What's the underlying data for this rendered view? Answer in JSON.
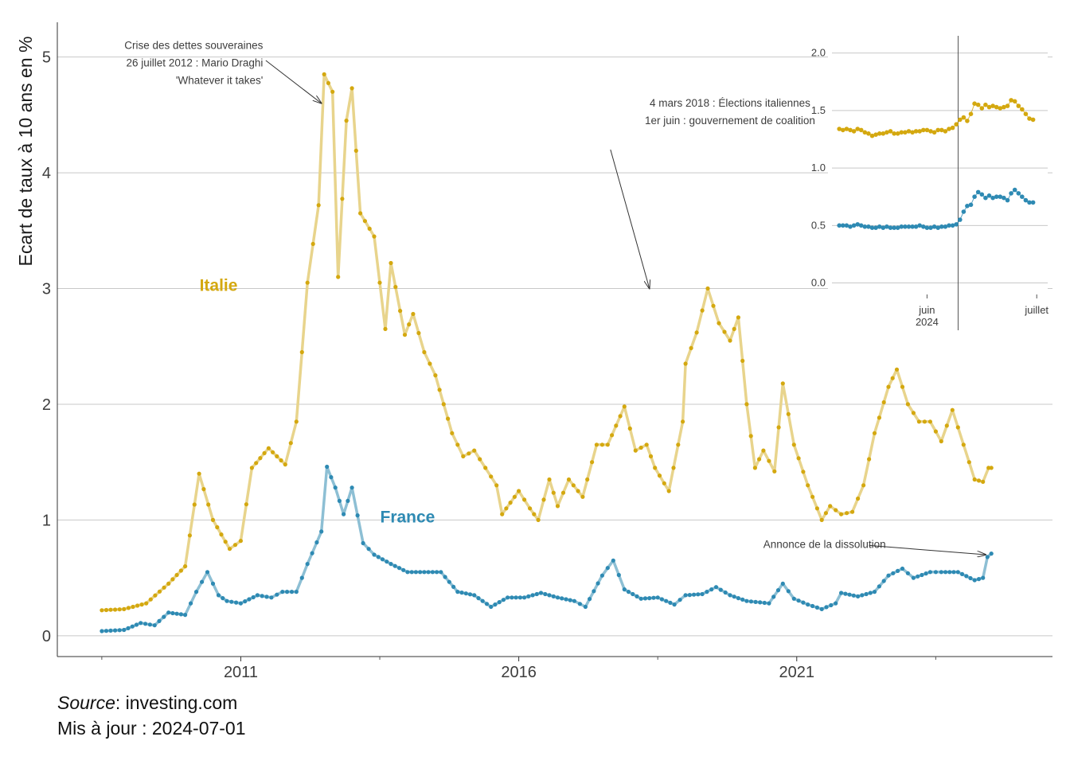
{
  "chart_data": {
    "type": "line",
    "ylabel": "Ecart de taux à 10 ans en %",
    "xlabel": "",
    "ylim": [
      -0.18,
      5.3
    ],
    "xlim": [
      2007.7,
      2025.6
    ],
    "y_ticks": [
      0,
      1,
      2,
      3,
      4,
      5
    ],
    "x_ticks": [
      2011,
      2016,
      2021
    ],
    "x_tick_labels": [
      "2011",
      "2016",
      "2021"
    ],
    "grid": "horizontal",
    "series": [
      {
        "name": "Italie",
        "color": "#D4A80F",
        "line_color": "#E8D48C",
        "anchors": [
          [
            2008.5,
            0.22
          ],
          [
            2008.9,
            0.23
          ],
          [
            2009.3,
            0.28
          ],
          [
            2009.7,
            0.45
          ],
          [
            2010.0,
            0.6
          ],
          [
            2010.25,
            1.4
          ],
          [
            2010.5,
            1.0
          ],
          [
            2010.8,
            0.75
          ],
          [
            2011.0,
            0.82
          ],
          [
            2011.2,
            1.45
          ],
          [
            2011.5,
            1.62
          ],
          [
            2011.8,
            1.48
          ],
          [
            2012.0,
            1.85
          ],
          [
            2012.2,
            3.05
          ],
          [
            2012.4,
            3.72
          ],
          [
            2012.5,
            4.85
          ],
          [
            2012.65,
            4.7
          ],
          [
            2012.75,
            3.1
          ],
          [
            2012.9,
            4.45
          ],
          [
            2013.0,
            4.73
          ],
          [
            2013.15,
            3.65
          ],
          [
            2013.4,
            3.45
          ],
          [
            2013.6,
            2.65
          ],
          [
            2013.7,
            3.22
          ],
          [
            2013.95,
            2.6
          ],
          [
            2014.1,
            2.78
          ],
          [
            2014.3,
            2.45
          ],
          [
            2014.5,
            2.25
          ],
          [
            2014.8,
            1.75
          ],
          [
            2015.0,
            1.55
          ],
          [
            2015.2,
            1.6
          ],
          [
            2015.4,
            1.45
          ],
          [
            2015.6,
            1.3
          ],
          [
            2015.7,
            1.05
          ],
          [
            2016.0,
            1.25
          ],
          [
            2016.2,
            1.1
          ],
          [
            2016.35,
            1.0
          ],
          [
            2016.55,
            1.35
          ],
          [
            2016.7,
            1.12
          ],
          [
            2016.9,
            1.35
          ],
          [
            2017.15,
            1.2
          ],
          [
            2017.4,
            1.65
          ],
          [
            2017.6,
            1.65
          ],
          [
            2017.9,
            1.98
          ],
          [
            2018.1,
            1.6
          ],
          [
            2018.3,
            1.65
          ],
          [
            2018.45,
            1.45
          ],
          [
            2018.7,
            1.25
          ],
          [
            2018.95,
            1.85
          ],
          [
            2019.0,
            2.35
          ],
          [
            2019.2,
            2.62
          ],
          [
            2019.4,
            3.0
          ],
          [
            2019.6,
            2.7
          ],
          [
            2019.8,
            2.55
          ],
          [
            2019.95,
            2.75
          ],
          [
            2020.1,
            2.0
          ],
          [
            2020.25,
            1.45
          ],
          [
            2020.4,
            1.6
          ],
          [
            2020.6,
            1.42
          ],
          [
            2020.75,
            2.18
          ],
          [
            2020.95,
            1.65
          ],
          [
            2021.2,
            1.3
          ],
          [
            2021.45,
            1.0
          ],
          [
            2021.6,
            1.12
          ],
          [
            2021.8,
            1.05
          ],
          [
            2022.0,
            1.07
          ],
          [
            2022.2,
            1.3
          ],
          [
            2022.4,
            1.75
          ],
          [
            2022.65,
            2.15
          ],
          [
            2022.8,
            2.3
          ],
          [
            2023.0,
            2.0
          ],
          [
            2023.2,
            1.85
          ],
          [
            2023.4,
            1.85
          ],
          [
            2023.6,
            1.68
          ],
          [
            2023.8,
            1.95
          ],
          [
            2024.0,
            1.65
          ],
          [
            2024.2,
            1.35
          ],
          [
            2024.35,
            1.33
          ],
          [
            2024.45,
            1.45
          ],
          [
            2024.5,
            1.45
          ]
        ]
      },
      {
        "name": "France",
        "color": "#2E8AB3",
        "line_color": "#8DBFD4",
        "anchors": [
          [
            2008.5,
            0.04
          ],
          [
            2008.9,
            0.05
          ],
          [
            2009.2,
            0.11
          ],
          [
            2009.45,
            0.09
          ],
          [
            2009.7,
            0.2
          ],
          [
            2010.0,
            0.18
          ],
          [
            2010.2,
            0.38
          ],
          [
            2010.4,
            0.55
          ],
          [
            2010.6,
            0.35
          ],
          [
            2010.75,
            0.3
          ],
          [
            2011.0,
            0.28
          ],
          [
            2011.3,
            0.35
          ],
          [
            2011.55,
            0.33
          ],
          [
            2011.75,
            0.38
          ],
          [
            2012.0,
            0.38
          ],
          [
            2012.2,
            0.62
          ],
          [
            2012.45,
            0.9
          ],
          [
            2012.55,
            1.46
          ],
          [
            2012.7,
            1.28
          ],
          [
            2012.85,
            1.05
          ],
          [
            2013.0,
            1.28
          ],
          [
            2013.2,
            0.8
          ],
          [
            2013.4,
            0.7
          ],
          [
            2013.7,
            0.62
          ],
          [
            2014.0,
            0.55
          ],
          [
            2014.3,
            0.55
          ],
          [
            2014.6,
            0.55
          ],
          [
            2014.9,
            0.38
          ],
          [
            2015.2,
            0.35
          ],
          [
            2015.5,
            0.25
          ],
          [
            2015.8,
            0.33
          ],
          [
            2016.1,
            0.33
          ],
          [
            2016.4,
            0.37
          ],
          [
            2016.7,
            0.33
          ],
          [
            2017.0,
            0.3
          ],
          [
            2017.2,
            0.25
          ],
          [
            2017.5,
            0.52
          ],
          [
            2017.7,
            0.65
          ],
          [
            2017.9,
            0.4
          ],
          [
            2018.2,
            0.32
          ],
          [
            2018.5,
            0.33
          ],
          [
            2018.8,
            0.27
          ],
          [
            2019.0,
            0.35
          ],
          [
            2019.3,
            0.36
          ],
          [
            2019.55,
            0.42
          ],
          [
            2019.8,
            0.35
          ],
          [
            2020.1,
            0.3
          ],
          [
            2020.5,
            0.28
          ],
          [
            2020.75,
            0.45
          ],
          [
            2020.95,
            0.32
          ],
          [
            2021.2,
            0.27
          ],
          [
            2021.45,
            0.23
          ],
          [
            2021.7,
            0.28
          ],
          [
            2021.8,
            0.37
          ],
          [
            2022.1,
            0.34
          ],
          [
            2022.4,
            0.38
          ],
          [
            2022.65,
            0.52
          ],
          [
            2022.9,
            0.58
          ],
          [
            2023.1,
            0.5
          ],
          [
            2023.4,
            0.55
          ],
          [
            2023.6,
            0.55
          ],
          [
            2023.9,
            0.55
          ],
          [
            2024.2,
            0.48
          ],
          [
            2024.35,
            0.5
          ],
          [
            2024.43,
            0.68
          ],
          [
            2024.5,
            0.71
          ]
        ]
      }
    ],
    "series_labels": [
      {
        "text": "Italie",
        "x": 2010.6,
        "y": 2.98
      },
      {
        "text": "France",
        "x": 2014.0,
        "y": 0.98
      }
    ],
    "annotations": [
      {
        "lines": [
          "Crise des dettes souveraines",
          "26 juillet 2012 : Mario Draghi",
          "'Whatever it takes'"
        ],
        "align": "end",
        "text_x": 2011.4,
        "text_y": 5.07,
        "arrow_from": [
          2011.45,
          4.97
        ],
        "arrow_to": [
          2012.45,
          4.6
        ]
      },
      {
        "lines": [
          "4 mars 2018 : Élections italiennes",
          "1er juin : gouvernement de coalition"
        ],
        "align": "middle",
        "text_x": 2019.8,
        "text_y": 4.57,
        "arrow_from": [
          2017.65,
          4.2
        ],
        "arrow_to": [
          2018.35,
          3.0
        ]
      },
      {
        "lines": [
          "Annonce de la dissolution"
        ],
        "align": "middle",
        "text_x": 2021.5,
        "text_y": 0.76,
        "arrow_from": [
          2022.3,
          0.78
        ],
        "arrow_to": [
          2024.4,
          0.7
        ]
      }
    ],
    "inset": {
      "type": "line",
      "ylim": [
        -0.1,
        2.15
      ],
      "y_ticks": [
        0.0,
        0.5,
        1.0,
        1.5,
        2.0
      ],
      "y_tick_labels": [
        "0.0",
        "0.5",
        "1.0",
        "1.5",
        "2.0"
      ],
      "x_ticks": [
        6,
        36
      ],
      "x_tick_labels": [
        [
          "juin",
          "2024"
        ],
        [
          "juillet"
        ]
      ],
      "xlim": [
        -20,
        39
      ],
      "vline_x": 14.5,
      "series": [
        {
          "name": "Italie",
          "color": "#D4A80F",
          "points": [
            [
              -18,
              1.34
            ],
            [
              -17,
              1.33
            ],
            [
              -16,
              1.34
            ],
            [
              -15,
              1.33
            ],
            [
              -14,
              1.32
            ],
            [
              -13,
              1.34
            ],
            [
              -12,
              1.33
            ],
            [
              -11,
              1.31
            ],
            [
              -10,
              1.3
            ],
            [
              -9,
              1.28
            ],
            [
              -8,
              1.29
            ],
            [
              -7,
              1.3
            ],
            [
              -6,
              1.3
            ],
            [
              -5,
              1.31
            ],
            [
              -4,
              1.32
            ],
            [
              -3,
              1.3
            ],
            [
              -2,
              1.3
            ],
            [
              -1,
              1.31
            ],
            [
              0,
              1.31
            ],
            [
              1,
              1.32
            ],
            [
              2,
              1.31
            ],
            [
              3,
              1.32
            ],
            [
              4,
              1.32
            ],
            [
              5,
              1.33
            ],
            [
              6,
              1.33
            ],
            [
              7,
              1.32
            ],
            [
              8,
              1.31
            ],
            [
              9,
              1.33
            ],
            [
              10,
              1.33
            ],
            [
              11,
              1.32
            ],
            [
              12,
              1.34
            ],
            [
              13,
              1.35
            ],
            [
              14,
              1.38
            ],
            [
              15,
              1.42
            ],
            [
              16,
              1.44
            ],
            [
              17,
              1.41
            ],
            [
              18,
              1.47
            ],
            [
              19,
              1.56
            ],
            [
              20,
              1.55
            ],
            [
              21,
              1.52
            ],
            [
              22,
              1.55
            ],
            [
              23,
              1.53
            ],
            [
              24,
              1.54
            ],
            [
              25,
              1.53
            ],
            [
              26,
              1.52
            ],
            [
              27,
              1.53
            ],
            [
              28,
              1.54
            ],
            [
              29,
              1.59
            ],
            [
              30,
              1.58
            ],
            [
              31,
              1.54
            ],
            [
              32,
              1.51
            ],
            [
              33,
              1.47
            ],
            [
              34,
              1.43
            ],
            [
              35,
              1.42
            ]
          ]
        },
        {
          "name": "France",
          "color": "#2E8AB3",
          "points": [
            [
              -18,
              0.5
            ],
            [
              -17,
              0.5
            ],
            [
              -16,
              0.5
            ],
            [
              -15,
              0.49
            ],
            [
              -14,
              0.5
            ],
            [
              -13,
              0.51
            ],
            [
              -12,
              0.5
            ],
            [
              -11,
              0.49
            ],
            [
              -10,
              0.49
            ],
            [
              -9,
              0.48
            ],
            [
              -8,
              0.48
            ],
            [
              -7,
              0.49
            ],
            [
              -6,
              0.48
            ],
            [
              -5,
              0.49
            ],
            [
              -4,
              0.48
            ],
            [
              -3,
              0.48
            ],
            [
              -2,
              0.48
            ],
            [
              -1,
              0.49
            ],
            [
              0,
              0.49
            ],
            [
              1,
              0.49
            ],
            [
              2,
              0.49
            ],
            [
              3,
              0.49
            ],
            [
              4,
              0.5
            ],
            [
              5,
              0.49
            ],
            [
              6,
              0.48
            ],
            [
              7,
              0.48
            ],
            [
              8,
              0.49
            ],
            [
              9,
              0.48
            ],
            [
              10,
              0.49
            ],
            [
              11,
              0.49
            ],
            [
              12,
              0.5
            ],
            [
              13,
              0.5
            ],
            [
              14,
              0.51
            ],
            [
              15,
              0.55
            ],
            [
              16,
              0.62
            ],
            [
              17,
              0.67
            ],
            [
              18,
              0.68
            ],
            [
              19,
              0.75
            ],
            [
              20,
              0.79
            ],
            [
              21,
              0.77
            ],
            [
              22,
              0.74
            ],
            [
              23,
              0.76
            ],
            [
              24,
              0.74
            ],
            [
              25,
              0.75
            ],
            [
              26,
              0.75
            ],
            [
              27,
              0.74
            ],
            [
              28,
              0.72
            ],
            [
              29,
              0.78
            ],
            [
              30,
              0.81
            ],
            [
              31,
              0.78
            ],
            [
              32,
              0.75
            ],
            [
              33,
              0.72
            ],
            [
              34,
              0.7
            ],
            [
              35,
              0.7
            ]
          ]
        }
      ]
    }
  },
  "footer": {
    "source_label": "Source",
    "source_value": ": investing.com",
    "updated": "Mis à jour : 2024-07-01"
  }
}
